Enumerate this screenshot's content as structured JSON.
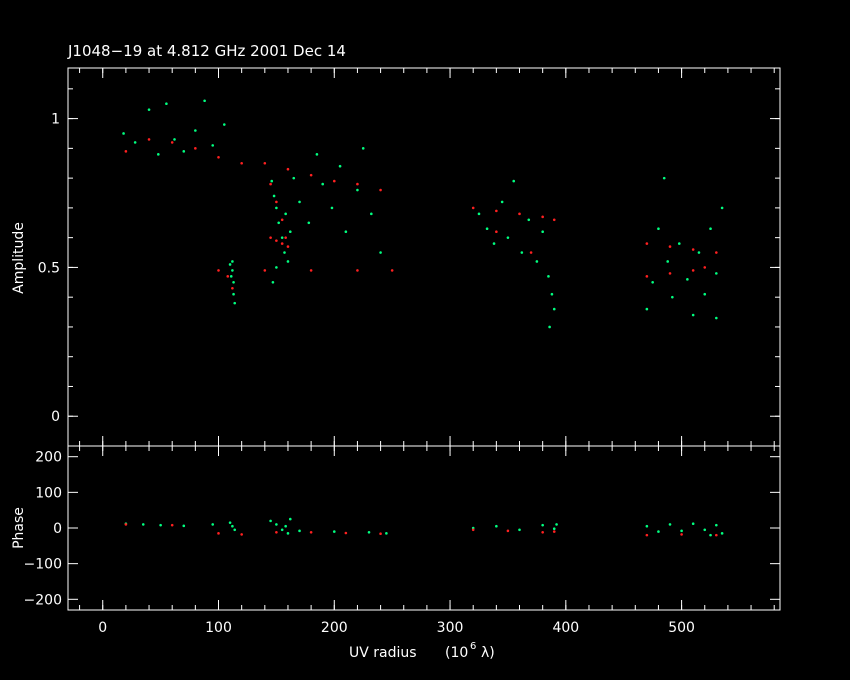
{
  "chart_data": [
    {
      "type": "scatter",
      "title": "J1048−19 at 4.812 GHz 2001 Dec 14",
      "xlabel": "UV radius",
      "xlabel_unit_prefix": "(10",
      "xlabel_unit_exponent": "6",
      "xlabel_unit_suffix": "λ)",
      "ylabel": "Amplitude",
      "xlim": [
        -30,
        585
      ],
      "ylim": [
        -0.1,
        1.17
      ],
      "yticks": [
        0,
        0.5,
        1
      ],
      "ytick_labels": [
        "0",
        "0.5",
        "1"
      ],
      "series": [
        {
          "color": "#00ff80",
          "points": [
            [
              18,
              0.95
            ],
            [
              28,
              0.92
            ],
            [
              40,
              1.03
            ],
            [
              48,
              0.88
            ],
            [
              55,
              1.05
            ],
            [
              62,
              0.93
            ],
            [
              70,
              0.89
            ],
            [
              80,
              0.96
            ],
            [
              88,
              1.06
            ],
            [
              95,
              0.91
            ],
            [
              105,
              0.98
            ],
            [
              112,
              0.52
            ],
            [
              112,
              0.49
            ],
            [
              113,
              0.45
            ],
            [
              113,
              0.41
            ],
            [
              114,
              0.38
            ],
            [
              111,
              0.47
            ],
            [
              110,
              0.51
            ],
            [
              146,
              0.79
            ],
            [
              148,
              0.74
            ],
            [
              150,
              0.7
            ],
            [
              152,
              0.65
            ],
            [
              155,
              0.6
            ],
            [
              157,
              0.55
            ],
            [
              150,
              0.5
            ],
            [
              147,
              0.45
            ],
            [
              160,
              0.52
            ],
            [
              162,
              0.62
            ],
            [
              158,
              0.68
            ],
            [
              165,
              0.8
            ],
            [
              170,
              0.72
            ],
            [
              178,
              0.65
            ],
            [
              185,
              0.88
            ],
            [
              190,
              0.78
            ],
            [
              198,
              0.7
            ],
            [
              205,
              0.84
            ],
            [
              210,
              0.62
            ],
            [
              220,
              0.76
            ],
            [
              225,
              0.9
            ],
            [
              232,
              0.68
            ],
            [
              240,
              0.55
            ],
            [
              325,
              0.68
            ],
            [
              332,
              0.63
            ],
            [
              338,
              0.58
            ],
            [
              345,
              0.72
            ],
            [
              350,
              0.6
            ],
            [
              355,
              0.79
            ],
            [
              362,
              0.55
            ],
            [
              368,
              0.66
            ],
            [
              375,
              0.52
            ],
            [
              380,
              0.62
            ],
            [
              385,
              0.47
            ],
            [
              388,
              0.41
            ],
            [
              390,
              0.36
            ],
            [
              386,
              0.3
            ],
            [
              470,
              0.36
            ],
            [
              475,
              0.45
            ],
            [
              480,
              0.63
            ],
            [
              488,
              0.52
            ],
            [
              492,
              0.4
            ],
            [
              498,
              0.58
            ],
            [
              505,
              0.46
            ],
            [
              510,
              0.34
            ],
            [
              515,
              0.55
            ],
            [
              520,
              0.41
            ],
            [
              525,
              0.63
            ],
            [
              530,
              0.48
            ],
            [
              535,
              0.7
            ],
            [
              530,
              0.33
            ],
            [
              485,
              0.8
            ]
          ]
        },
        {
          "color": "#ff2020",
          "points": [
            [
              20,
              0.89
            ],
            [
              40,
              0.93
            ],
            [
              60,
              0.92
            ],
            [
              80,
              0.9
            ],
            [
              100,
              0.87
            ],
            [
              120,
              0.85
            ],
            [
              140,
              0.85
            ],
            [
              160,
              0.83
            ],
            [
              180,
              0.81
            ],
            [
              200,
              0.79
            ],
            [
              220,
              0.78
            ],
            [
              240,
              0.76
            ],
            [
              100,
              0.49
            ],
            [
              140,
              0.49
            ],
            [
              180,
              0.49
            ],
            [
              220,
              0.49
            ],
            [
              250,
              0.49
            ],
            [
              145,
              0.78
            ],
            [
              150,
              0.72
            ],
            [
              155,
              0.66
            ],
            [
              158,
              0.6
            ],
            [
              145,
              0.6
            ],
            [
              150,
              0.59
            ],
            [
              155,
              0.58
            ],
            [
              160,
              0.57
            ],
            [
              108,
              0.47
            ],
            [
              112,
              0.43
            ],
            [
              320,
              0.7
            ],
            [
              340,
              0.69
            ],
            [
              360,
              0.68
            ],
            [
              380,
              0.67
            ],
            [
              390,
              0.66
            ],
            [
              340,
              0.62
            ],
            [
              370,
              0.55
            ],
            [
              470,
              0.58
            ],
            [
              490,
              0.57
            ],
            [
              510,
              0.56
            ],
            [
              530,
              0.55
            ],
            [
              470,
              0.47
            ],
            [
              490,
              0.48
            ],
            [
              510,
              0.49
            ],
            [
              520,
              0.5
            ]
          ]
        }
      ]
    },
    {
      "type": "scatter",
      "xlabel": "UV radius",
      "ylabel": "Phase",
      "xlim": [
        -30,
        585
      ],
      "ylim": [
        -230,
        230
      ],
      "xticks": [
        0,
        100,
        200,
        300,
        400,
        500
      ],
      "xtick_labels": [
        "0",
        "100",
        "200",
        "300",
        "400",
        "500"
      ],
      "yticks": [
        -200,
        -100,
        0,
        100,
        200
      ],
      "ytick_labels": [
        "−200",
        "−100",
        "0",
        "100",
        "200"
      ],
      "series": [
        {
          "color": "#00ff80",
          "points": [
            [
              20,
              12
            ],
            [
              35,
              10
            ],
            [
              50,
              8
            ],
            [
              70,
              6
            ],
            [
              95,
              10
            ],
            [
              110,
              15
            ],
            [
              112,
              5
            ],
            [
              114,
              -5
            ],
            [
              145,
              20
            ],
            [
              150,
              10
            ],
            [
              155,
              -5
            ],
            [
              160,
              -15
            ],
            [
              162,
              25
            ],
            [
              158,
              5
            ],
            [
              170,
              -8
            ],
            [
              200,
              -10
            ],
            [
              230,
              -12
            ],
            [
              245,
              -15
            ],
            [
              320,
              0
            ],
            [
              340,
              5
            ],
            [
              360,
              -5
            ],
            [
              380,
              8
            ],
            [
              390,
              -2
            ],
            [
              392,
              10
            ],
            [
              470,
              5
            ],
            [
              480,
              -10
            ],
            [
              490,
              10
            ],
            [
              500,
              -8
            ],
            [
              510,
              12
            ],
            [
              520,
              -5
            ],
            [
              530,
              8
            ],
            [
              535,
              -15
            ],
            [
              525,
              -20
            ]
          ]
        },
        {
          "color": "#ff2020",
          "points": [
            [
              20,
              10
            ],
            [
              60,
              8
            ],
            [
              100,
              -15
            ],
            [
              120,
              -18
            ],
            [
              150,
              -12
            ],
            [
              180,
              -12
            ],
            [
              210,
              -14
            ],
            [
              240,
              -16
            ],
            [
              320,
              -5
            ],
            [
              350,
              -8
            ],
            [
              380,
              -12
            ],
            [
              390,
              -10
            ],
            [
              470,
              -20
            ],
            [
              500,
              -18
            ],
            [
              530,
              -20
            ]
          ]
        }
      ]
    }
  ]
}
